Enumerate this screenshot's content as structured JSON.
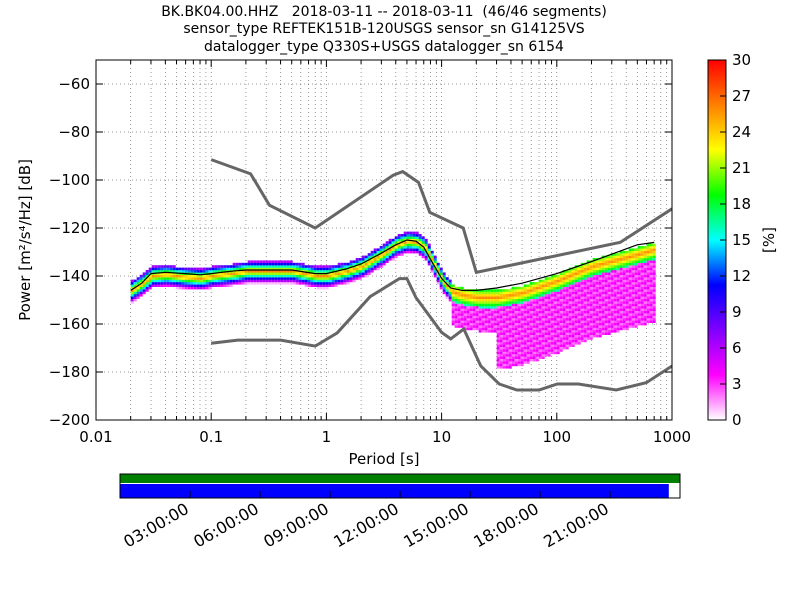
{
  "chart_data": {
    "type": "heatmap",
    "title_lines": [
      "BK.BK04.00.HHZ   2018-03-11 -- 2018-03-11  (46/46 segments)",
      "sensor_type REFTEK151B-120USGS sensor_sn G14125VS",
      "datalogger_type Q330S+USGS datalogger_sn 6154"
    ],
    "xlabel": "Period [s]",
    "ylabel": "Power [m²/s⁴/Hz] [dB]",
    "xscale": "log",
    "xlim": [
      0.01,
      1000
    ],
    "ylim": [
      -200,
      -50
    ],
    "xticks": [
      {
        "value": 0.01,
        "label": "0.01"
      },
      {
        "value": 0.1,
        "label": "0.1"
      },
      {
        "value": 1,
        "label": "1"
      },
      {
        "value": 10,
        "label": "10"
      },
      {
        "value": 100,
        "label": "100"
      },
      {
        "value": 1000,
        "label": "1000"
      }
    ],
    "yticks": [
      {
        "value": -60,
        "label": "−60"
      },
      {
        "value": -80,
        "label": "−80"
      },
      {
        "value": -100,
        "label": "−100"
      },
      {
        "value": -120,
        "label": "−120"
      },
      {
        "value": -140,
        "label": "−140"
      },
      {
        "value": -160,
        "label": "−160"
      },
      {
        "value": -180,
        "label": "−180"
      },
      {
        "value": -200,
        "label": "−200"
      }
    ],
    "grid": true,
    "colorbar": {
      "label": "[%]",
      "range": [
        0,
        30
      ],
      "ticks": [
        {
          "value": 0,
          "label": "0"
        },
        {
          "value": 3,
          "label": "3"
        },
        {
          "value": 6,
          "label": "6"
        },
        {
          "value": 9,
          "label": "9"
        },
        {
          "value": 12,
          "label": "12"
        },
        {
          "value": 15,
          "label": "15"
        },
        {
          "value": 18,
          "label": "18"
        },
        {
          "value": 21,
          "label": "21"
        },
        {
          "value": 24,
          "label": "24"
        },
        {
          "value": 27,
          "label": "27"
        },
        {
          "value": 30,
          "label": "30"
        }
      ],
      "stops": [
        "#ffffff",
        "#ff00ff",
        "#8000ff",
        "#0000ff",
        "#00ffff",
        "#00ff00",
        "#ffff00",
        "#ff8000",
        "#ff0000"
      ]
    },
    "noise_model_color": "#666666",
    "high_noise_model": [
      [
        0.1,
        -91.5
      ],
      [
        0.22,
        -97.4
      ],
      [
        0.32,
        -110.5
      ],
      [
        0.8,
        -120
      ],
      [
        3.8,
        -98
      ],
      [
        4.6,
        -96.5
      ],
      [
        6.3,
        -101
      ],
      [
        7.9,
        -113.5
      ],
      [
        15.4,
        -120
      ],
      [
        20,
        -138.5
      ],
      [
        354.8,
        -126
      ],
      [
        1000,
        -112
      ]
    ],
    "low_noise_model": [
      [
        0.1,
        -168
      ],
      [
        0.17,
        -166.7
      ],
      [
        0.4,
        -166.7
      ],
      [
        0.8,
        -169.2
      ],
      [
        1.24,
        -163.7
      ],
      [
        2.4,
        -148.6
      ],
      [
        4.3,
        -141.1
      ],
      [
        5,
        -141.1
      ],
      [
        6,
        -149
      ],
      [
        10,
        -163.5
      ],
      [
        12,
        -166.2
      ],
      [
        15.6,
        -162.1
      ],
      [
        21.9,
        -177.5
      ],
      [
        31.6,
        -185
      ],
      [
        45,
        -187.5
      ],
      [
        70,
        -187.5
      ],
      [
        101,
        -185
      ],
      [
        154,
        -185
      ],
      [
        328,
        -187.5
      ],
      [
        600,
        -184.4
      ],
      [
        1000,
        -177.5
      ]
    ],
    "mode_curve": [
      [
        0.02,
        -146
      ],
      [
        0.025,
        -143
      ],
      [
        0.03,
        -140
      ],
      [
        0.04,
        -139.5
      ],
      [
        0.06,
        -140.5
      ],
      [
        0.08,
        -141
      ],
      [
        0.1,
        -140
      ],
      [
        0.15,
        -139
      ],
      [
        0.2,
        -138
      ],
      [
        0.3,
        -138
      ],
      [
        0.5,
        -138
      ],
      [
        0.8,
        -140
      ],
      [
        1,
        -140
      ],
      [
        1.5,
        -138
      ],
      [
        2,
        -136
      ],
      [
        3,
        -131
      ],
      [
        4,
        -127
      ],
      [
        5,
        -125.5
      ],
      [
        6,
        -126
      ],
      [
        7,
        -128
      ],
      [
        8,
        -133
      ],
      [
        10,
        -142
      ],
      [
        12,
        -146.5
      ],
      [
        15,
        -148
      ],
      [
        20,
        -149
      ],
      [
        30,
        -149
      ],
      [
        50,
        -147
      ],
      [
        100,
        -142
      ],
      [
        200,
        -136
      ],
      [
        500,
        -131
      ],
      [
        700,
        -129
      ]
    ],
    "mean_curve": [
      [
        0.02,
        -146
      ],
      [
        0.025,
        -143
      ],
      [
        0.03,
        -139
      ],
      [
        0.04,
        -138.5
      ],
      [
        0.06,
        -139
      ],
      [
        0.08,
        -139.5
      ],
      [
        0.1,
        -139
      ],
      [
        0.15,
        -138
      ],
      [
        0.2,
        -137.5
      ],
      [
        0.3,
        -137.5
      ],
      [
        0.5,
        -137.5
      ],
      [
        0.8,
        -139
      ],
      [
        1,
        -139
      ],
      [
        1.5,
        -137
      ],
      [
        2,
        -135
      ],
      [
        3,
        -130.5
      ],
      [
        4,
        -127
      ],
      [
        5,
        -125
      ],
      [
        6,
        -125.5
      ],
      [
        7,
        -128
      ],
      [
        8,
        -133
      ],
      [
        10,
        -141
      ],
      [
        12,
        -145
      ],
      [
        15,
        -146
      ],
      [
        20,
        -146
      ],
      [
        30,
        -145
      ],
      [
        50,
        -143
      ],
      [
        100,
        -139
      ],
      [
        200,
        -134
      ],
      [
        500,
        -127
      ],
      [
        700,
        -126
      ]
    ]
  },
  "timeline": {
    "labels": [
      "03:00:00",
      "06:00:00",
      "09:00:00",
      "12:00:00",
      "15:00:00",
      "18:00:00",
      "21:00:00"
    ],
    "top_color": "#008000",
    "bottom_color": "#0000ff",
    "data_coverage_fraction": 0.98
  }
}
